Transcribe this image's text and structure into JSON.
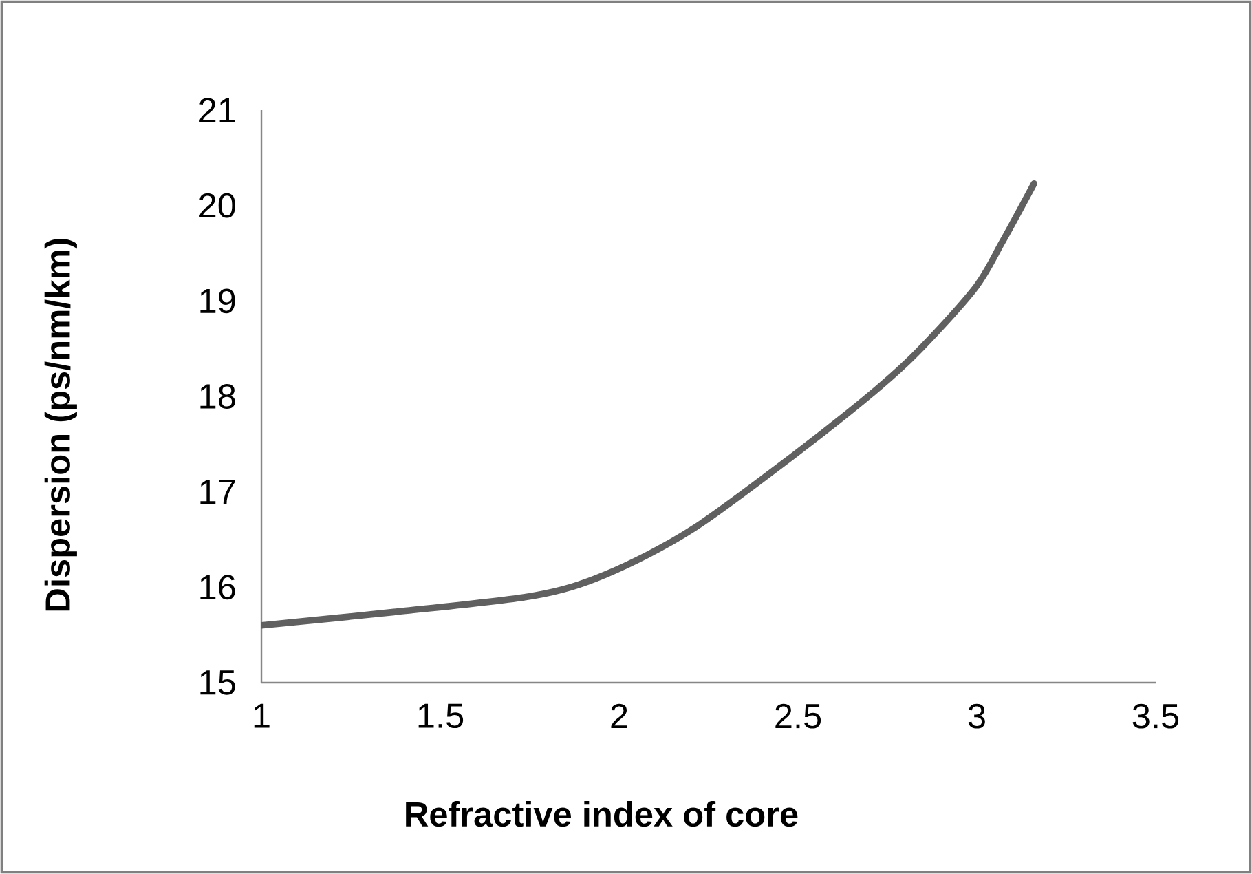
{
  "chart_data": {
    "type": "line",
    "xlabel": "Refractive index of core",
    "ylabel": "Dispersion  (ps/nm/km)",
    "x": [
      1.0,
      1.37,
      1.76,
      1.96,
      2.21,
      2.57,
      2.8,
      2.99,
      3.07,
      3.16
    ],
    "series": [
      {
        "color": "#606060",
        "values": [
          15.6,
          15.74,
          15.91,
          16.13,
          16.62,
          17.62,
          18.34,
          19.11,
          19.61,
          20.23
        ]
      }
    ],
    "xlim": [
      1,
      3.5
    ],
    "ylim": [
      15,
      21
    ],
    "xticks": [
      1,
      1.5,
      2,
      2.5,
      3,
      3.5
    ],
    "yticks": [
      15,
      16,
      17,
      18,
      19,
      20,
      21
    ],
    "grid": false,
    "marker": "none",
    "line_style": "solid"
  }
}
